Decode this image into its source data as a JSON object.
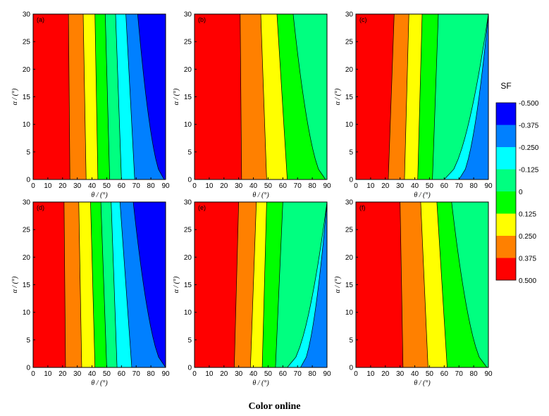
{
  "caption": "Color online",
  "colorbar": {
    "title": "SF",
    "levels": [
      {
        "label": "-0.500",
        "color": "#0000ff"
      },
      {
        "label": "-0.375",
        "color": "#0080ff"
      },
      {
        "label": "-0.250",
        "color": "#00ffff"
      },
      {
        "label": "-0.125",
        "color": "#00ff80"
      },
      {
        "label": "0",
        "color": "#00ff00"
      },
      {
        "label": "0.125",
        "color": "#ffff00"
      },
      {
        "label": "0.250",
        "color": "#ff8000"
      },
      {
        "label": "0.375",
        "color": "#ff0000"
      },
      {
        "label": "0.500",
        "color": "#ff0000"
      }
    ]
  },
  "chart_data": [
    {
      "type": "heatmap",
      "panel_label": "(a)",
      "xlabel": "θ / (°)",
      "ylabel": "α / (°)",
      "xlim": [
        0,
        90
      ],
      "ylim": [
        0,
        30
      ],
      "xticks": [
        0,
        10,
        20,
        30,
        40,
        50,
        60,
        70,
        80,
        90
      ],
      "yticks": [
        0,
        5,
        10,
        15,
        20,
        25,
        30
      ],
      "contours_theta_at_alpha": {
        "alpha": [
          0,
          30
        ],
        "bands": [
          {
            "color": "#ff0000",
            "bound": [
              25,
              24
            ]
          },
          {
            "color": "#ff8000",
            "bound": [
              36,
              34
            ]
          },
          {
            "color": "#ffff00",
            "bound": [
              44,
              42
            ]
          },
          {
            "color": "#00ff00",
            "bound": [
              52,
              49
            ]
          },
          {
            "color": "#00ff80",
            "bound": [
              60,
              56
            ]
          },
          {
            "color": "#00ffff",
            "bound": [
              69,
              63
            ]
          },
          {
            "color": "#0080ff",
            "bound": [
              89,
              71
            ]
          },
          {
            "color": "#0000ff",
            "bound": [
              90,
              90
            ]
          }
        ]
      }
    },
    {
      "type": "heatmap",
      "panel_label": "(b)",
      "xlabel": "θ / (°)",
      "ylabel": "α / (°)",
      "xlim": [
        0,
        90
      ],
      "ylim": [
        0,
        30
      ],
      "xticks": [
        0,
        10,
        20,
        30,
        40,
        50,
        60,
        70,
        80,
        90
      ],
      "yticks": [
        0,
        5,
        10,
        15,
        20,
        25,
        30
      ],
      "contours_theta_at_alpha": {
        "alpha": [
          0,
          30
        ],
        "bands": [
          {
            "color": "#ff0000",
            "bound": [
              32,
              31
            ]
          },
          {
            "color": "#ff8000",
            "bound": [
              49,
              45
            ]
          },
          {
            "color": "#ffff00",
            "bound": [
              63,
              56
            ]
          },
          {
            "color": "#00ff00",
            "bound": [
              89,
              67
            ]
          },
          {
            "color": "#00ff80",
            "bound": [
              90,
              90
            ]
          }
        ]
      }
    },
    {
      "type": "heatmap",
      "panel_label": "(c)",
      "xlabel": "θ / (°)",
      "ylabel": "α / (°)",
      "xlim": [
        0,
        90
      ],
      "ylim": [
        0,
        30
      ],
      "xticks": [
        0,
        10,
        20,
        30,
        40,
        50,
        60,
        70,
        80,
        90
      ],
      "yticks": [
        0,
        5,
        10,
        15,
        20,
        25,
        30
      ],
      "contours_theta_at_alpha": {
        "alpha": [
          0,
          30
        ],
        "bands": [
          {
            "color": "#ff0000",
            "bound": [
              22,
              26
            ]
          },
          {
            "color": "#ff8000",
            "bound": [
              33,
              36
            ]
          },
          {
            "color": "#ffff00",
            "bound": [
              42,
              45
            ]
          },
          {
            "color": "#00ff00",
            "bound": [
              52,
              56
            ]
          },
          {
            "color": "#00ff80",
            "bound": [
              60,
              90
            ]
          },
          {
            "color": "#00ffff",
            "bound": [
              70,
              90
            ]
          },
          {
            "color": "#0080ff",
            "bound": [
              90,
              90
            ]
          }
        ]
      }
    },
    {
      "type": "heatmap",
      "panel_label": "(d)",
      "xlabel": "θ / (°)",
      "ylabel": "α / (°)",
      "xlim": [
        0,
        90
      ],
      "ylim": [
        0,
        30
      ],
      "xticks": [
        0,
        10,
        20,
        30,
        40,
        50,
        60,
        70,
        80,
        90
      ],
      "yticks": [
        0,
        5,
        10,
        15,
        20,
        25,
        30
      ],
      "contours_theta_at_alpha": {
        "alpha": [
          0,
          30
        ],
        "bands": [
          {
            "color": "#ff0000",
            "bound": [
              22,
              21
            ]
          },
          {
            "color": "#ff8000",
            "bound": [
              33,
              31
            ]
          },
          {
            "color": "#ffff00",
            "bound": [
              42,
              39
            ]
          },
          {
            "color": "#00ff00",
            "bound": [
              50,
              46
            ]
          },
          {
            "color": "#00ff80",
            "bound": [
              57,
              53
            ]
          },
          {
            "color": "#00ffff",
            "bound": [
              67,
              59
            ]
          },
          {
            "color": "#0080ff",
            "bound": [
              90,
              68
            ]
          },
          {
            "color": "#0000ff",
            "bound": [
              90,
              90
            ]
          }
        ]
      }
    },
    {
      "type": "heatmap",
      "panel_label": "(e)",
      "xlabel": "θ / (°)",
      "ylabel": "α / (°)",
      "xlim": [
        0,
        90
      ],
      "ylim": [
        0,
        30
      ],
      "xticks": [
        0,
        10,
        20,
        30,
        40,
        50,
        60,
        70,
        80,
        90
      ],
      "yticks": [
        0,
        5,
        10,
        15,
        20,
        25,
        30
      ],
      "contours_theta_at_alpha": {
        "alpha": [
          0,
          30
        ],
        "bands": [
          {
            "color": "#ff0000",
            "bound": [
              27,
              30
            ]
          },
          {
            "color": "#ff8000",
            "bound": [
              38,
              42
            ]
          },
          {
            "color": "#ffff00",
            "bound": [
              46,
              49
            ]
          },
          {
            "color": "#00ff00",
            "bound": [
              55,
              60
            ]
          },
          {
            "color": "#00ff80",
            "bound": [
              63,
              90
            ]
          },
          {
            "color": "#00ffff",
            "bound": [
              72,
              90
            ]
          },
          {
            "color": "#0080ff",
            "bound": [
              90,
              90
            ]
          }
        ]
      }
    },
    {
      "type": "heatmap",
      "panel_label": "(f)",
      "xlabel": "θ / (°)",
      "ylabel": "α / (°)",
      "xlim": [
        0,
        90
      ],
      "ylim": [
        0,
        30
      ],
      "xticks": [
        0,
        10,
        20,
        30,
        40,
        50,
        60,
        70,
        80,
        90
      ],
      "yticks": [
        0,
        5,
        10,
        15,
        20,
        25,
        30
      ],
      "contours_theta_at_alpha": {
        "alpha": [
          0,
          30
        ],
        "bands": [
          {
            "color": "#ff0000",
            "bound": [
              32,
              30
            ]
          },
          {
            "color": "#ff8000",
            "bound": [
              49,
              44
            ]
          },
          {
            "color": "#ffff00",
            "bound": [
              62,
              55
            ]
          },
          {
            "color": "#00ff00",
            "bound": [
              89,
              65
            ]
          },
          {
            "color": "#00ff80",
            "bound": [
              90,
              90
            ]
          }
        ]
      }
    }
  ]
}
